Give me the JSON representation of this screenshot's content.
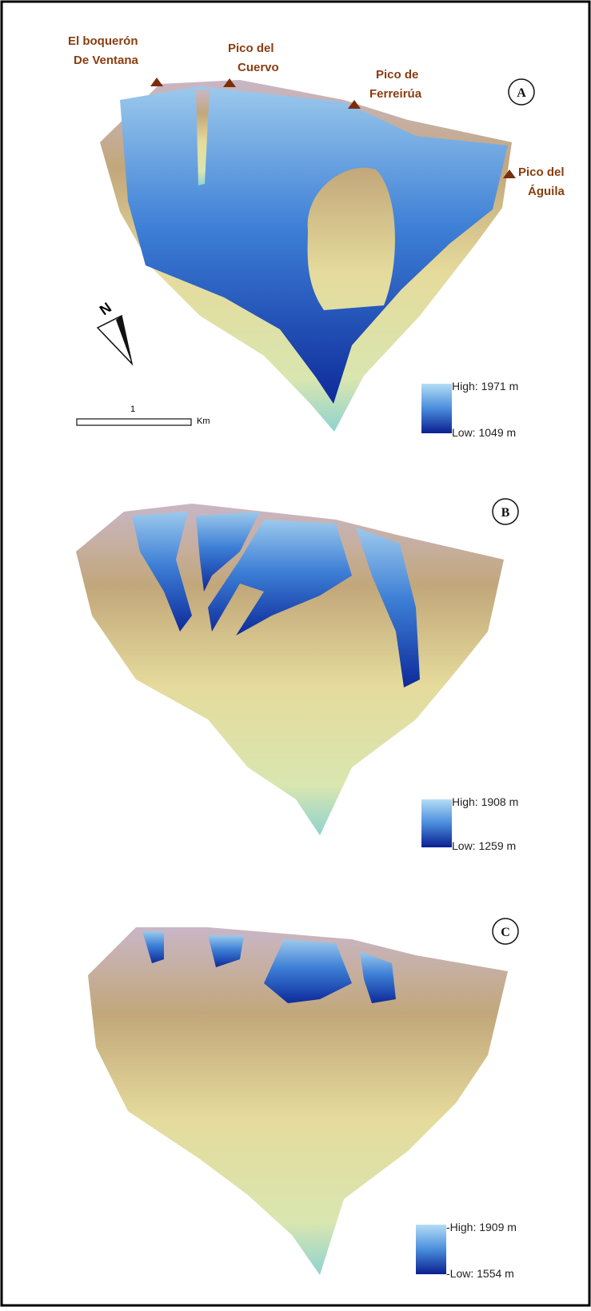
{
  "peaks": [
    {
      "lines": [
        "El boquerón",
        "De Ventana"
      ]
    },
    {
      "lines": [
        "Pico del",
        "Cuervo"
      ]
    },
    {
      "lines": [
        "Pico de",
        "Ferreirúa"
      ]
    },
    {
      "lines": [
        "Pico del",
        "Águila"
      ]
    }
  ],
  "north": "N",
  "scale_bar": {
    "distance": "1",
    "unit": "Km"
  },
  "panels": [
    {
      "label": "A",
      "legend": {
        "high": "High: 1971 m",
        "low": "Low: 1049 m"
      }
    },
    {
      "label": "B",
      "legend": {
        "high": "High: 1908 m",
        "low": "Low: 1259 m"
      }
    },
    {
      "label": "C",
      "legend": {
        "high": "-High: 1909 m",
        "low": "-Low: 1554 m"
      }
    }
  ]
}
